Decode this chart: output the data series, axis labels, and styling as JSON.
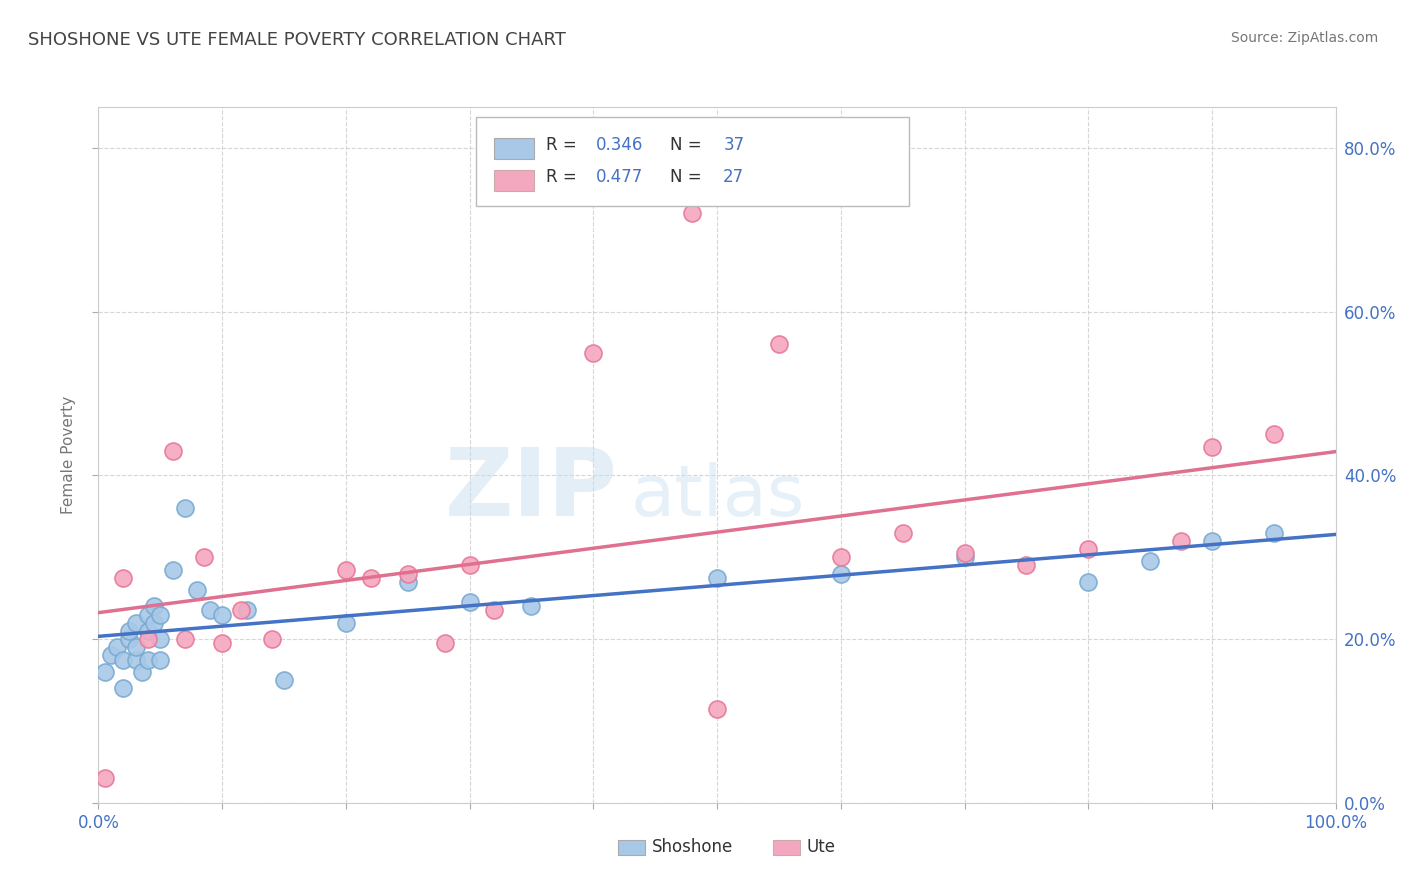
{
  "title": "SHOSHONE VS UTE FEMALE POVERTY CORRELATION CHART",
  "source": "Source: ZipAtlas.com",
  "ylabel": "Female Poverty",
  "xlim": [
    0,
    1.0
  ],
  "ylim": [
    0,
    0.85
  ],
  "xticks": [
    0.0,
    0.1,
    0.2,
    0.3,
    0.4,
    0.5,
    0.6,
    0.7,
    0.8,
    0.9,
    1.0
  ],
  "yticks": [
    0.0,
    0.2,
    0.4,
    0.6,
    0.8
  ],
  "ytick_labels": [
    "0.0%",
    "20.0%",
    "40.0%",
    "60.0%",
    "80.0%"
  ],
  "shoshone_R": "0.346",
  "shoshone_N": "37",
  "ute_R": "0.477",
  "ute_N": "27",
  "shoshone_color": "#a8c8e8",
  "ute_color": "#f4a8c0",
  "shoshone_edge_color": "#7aaad0",
  "ute_edge_color": "#e87898",
  "shoshone_line_color": "#4472c4",
  "ute_line_color": "#e07090",
  "watermark_zip": "ZIP",
  "watermark_atlas": "atlas",
  "legend_label_shoshone": "Shoshone",
  "legend_label_ute": "Ute",
  "axis_color": "#4472c4",
  "title_color": "#555555",
  "shoshone_x": [
    0.005,
    0.01,
    0.015,
    0.02,
    0.02,
    0.025,
    0.025,
    0.03,
    0.03,
    0.03,
    0.035,
    0.04,
    0.04,
    0.04,
    0.045,
    0.045,
    0.05,
    0.05,
    0.05,
    0.06,
    0.07,
    0.08,
    0.09,
    0.1,
    0.12,
    0.15,
    0.2,
    0.25,
    0.3,
    0.35,
    0.5,
    0.6,
    0.7,
    0.8,
    0.85,
    0.9,
    0.95
  ],
  "shoshone_y": [
    0.16,
    0.18,
    0.19,
    0.14,
    0.175,
    0.2,
    0.21,
    0.175,
    0.19,
    0.22,
    0.16,
    0.21,
    0.175,
    0.23,
    0.22,
    0.24,
    0.175,
    0.2,
    0.23,
    0.285,
    0.36,
    0.26,
    0.235,
    0.23,
    0.235,
    0.15,
    0.22,
    0.27,
    0.245,
    0.24,
    0.275,
    0.28,
    0.3,
    0.27,
    0.295,
    0.32,
    0.33
  ],
  "ute_x": [
    0.005,
    0.02,
    0.04,
    0.06,
    0.07,
    0.085,
    0.1,
    0.115,
    0.14,
    0.2,
    0.22,
    0.25,
    0.28,
    0.3,
    0.32,
    0.4,
    0.48,
    0.5,
    0.55,
    0.6,
    0.65,
    0.7,
    0.75,
    0.8,
    0.875,
    0.9,
    0.95
  ],
  "ute_y": [
    0.03,
    0.275,
    0.2,
    0.43,
    0.2,
    0.3,
    0.195,
    0.235,
    0.2,
    0.285,
    0.275,
    0.28,
    0.195,
    0.29,
    0.235,
    0.55,
    0.72,
    0.115,
    0.56,
    0.3,
    0.33,
    0.305,
    0.29,
    0.31,
    0.32,
    0.435,
    0.45
  ]
}
